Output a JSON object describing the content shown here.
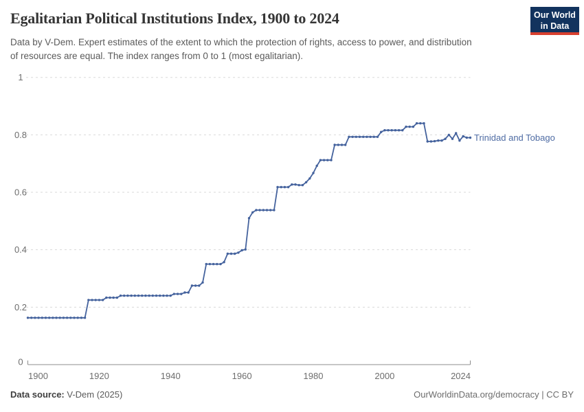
{
  "header": {
    "title": "Egalitarian Political Institutions Index, 1900 to 2024",
    "subtitle": "Data by V-Dem. Expert estimates of the extent to which the protection of rights, access to power, and distribution of resources are equal. The index ranges from 0 to 1 (most egalitarian)."
  },
  "logo": {
    "line1": "Our World",
    "line2": "in Data",
    "bg_color": "#12335e",
    "stripe_color": "#d8402f"
  },
  "chart_data": {
    "type": "line",
    "title": "Egalitarian Political Institutions Index, 1900 to 2024",
    "xlabel": "",
    "ylabel": "",
    "xlim": [
      1900,
      2024
    ],
    "ylim": [
      0,
      1
    ],
    "x_ticks": [
      "1900",
      "1920",
      "1940",
      "1960",
      "1980",
      "2000",
      "2024"
    ],
    "x_tick_years": [
      1900,
      1920,
      1940,
      1960,
      1980,
      2000,
      2024
    ],
    "y_ticks": [
      0,
      0.2,
      0.4,
      0.6,
      0.8,
      1
    ],
    "y_tick_labels": [
      "0",
      "0.2",
      "0.4",
      "0.6",
      "0.8",
      "1"
    ],
    "grid": "horizontal-dashed",
    "legend_position": "right-of-line",
    "line_color": "#44629d",
    "grid_color": "#d9d9d9",
    "axis_color": "#8c8c8c",
    "series": [
      {
        "name": "Trinidad and Tobago",
        "start_year": 1900,
        "end_year": 2024,
        "values": [
          0.163,
          0.163,
          0.163,
          0.163,
          0.163,
          0.163,
          0.163,
          0.163,
          0.163,
          0.163,
          0.163,
          0.163,
          0.163,
          0.163,
          0.163,
          0.163,
          0.163,
          0.225,
          0.225,
          0.225,
          0.225,
          0.225,
          0.233,
          0.233,
          0.233,
          0.233,
          0.24,
          0.24,
          0.24,
          0.24,
          0.24,
          0.24,
          0.24,
          0.24,
          0.24,
          0.24,
          0.24,
          0.24,
          0.24,
          0.24,
          0.24,
          0.246,
          0.246,
          0.246,
          0.251,
          0.251,
          0.275,
          0.275,
          0.275,
          0.286,
          0.35,
          0.35,
          0.35,
          0.35,
          0.35,
          0.357,
          0.386,
          0.386,
          0.386,
          0.39,
          0.398,
          0.401,
          0.51,
          0.53,
          0.538,
          0.538,
          0.538,
          0.538,
          0.538,
          0.538,
          0.618,
          0.618,
          0.618,
          0.618,
          0.627,
          0.627,
          0.625,
          0.625,
          0.635,
          0.648,
          0.667,
          0.692,
          0.712,
          0.712,
          0.712,
          0.712,
          0.765,
          0.765,
          0.765,
          0.765,
          0.793,
          0.793,
          0.793,
          0.793,
          0.793,
          0.793,
          0.793,
          0.793,
          0.793,
          0.81,
          0.816,
          0.816,
          0.816,
          0.816,
          0.816,
          0.816,
          0.828,
          0.828,
          0.828,
          0.84,
          0.84,
          0.84,
          0.777,
          0.777,
          0.778,
          0.78,
          0.78,
          0.786,
          0.8,
          0.786,
          0.806,
          0.78,
          0.795,
          0.79,
          0.79
        ]
      }
    ]
  },
  "footer": {
    "source_label": "Data source:",
    "source_value": "V-Dem (2025)",
    "credit": "OurWorldinData.org/democracy | CC BY"
  }
}
